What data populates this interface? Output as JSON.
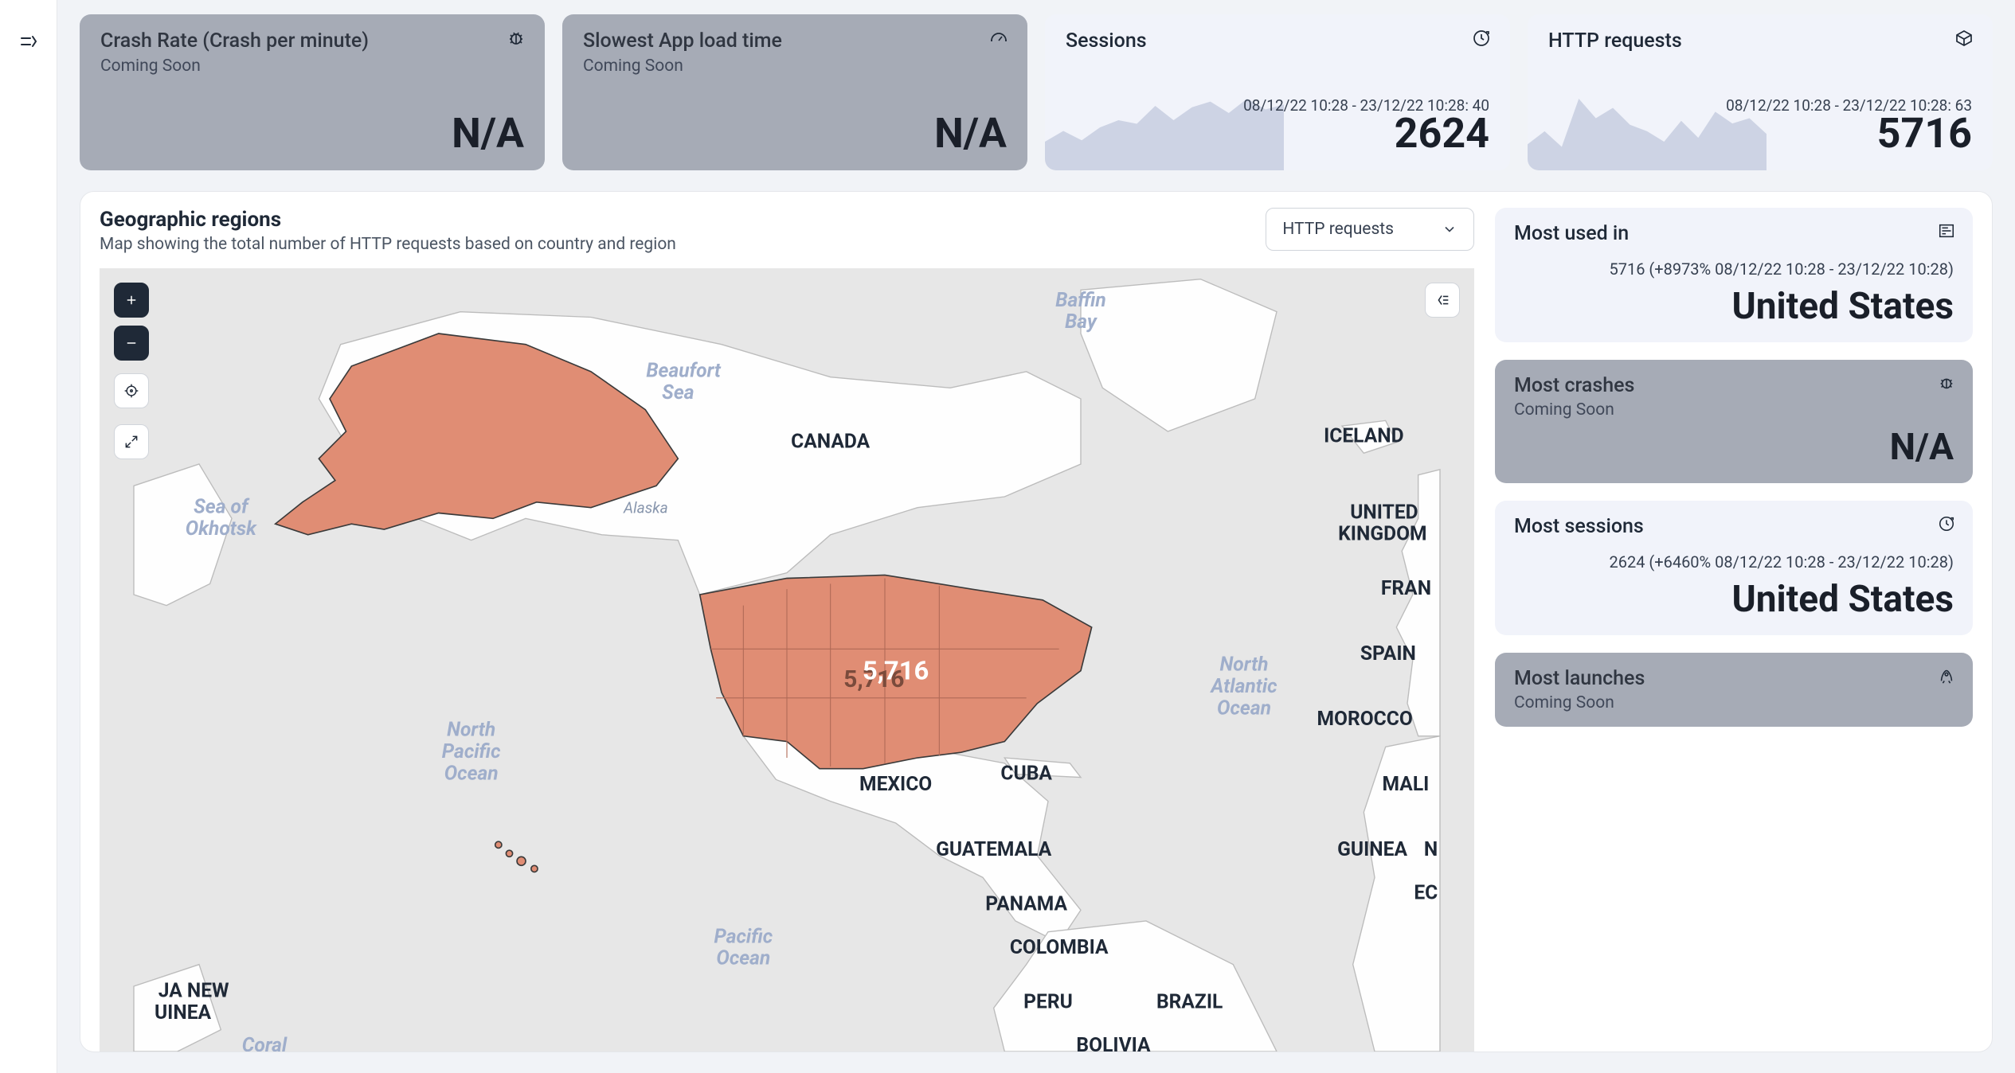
{
  "colors": {
    "page_bg": "#f1f3f7",
    "card_disabled_bg": "#a6abb6",
    "card_active_bg": "#f1f3fa",
    "spark_fill": "#cdd3e4",
    "map_water": "#e7e7e7",
    "map_land": "#fefefe",
    "map_highlight": "#e08d74",
    "map_border": "#8d8d8d"
  },
  "cards": {
    "crash_rate": {
      "title": "Crash Rate (Crash per minute)",
      "sub": "Coming Soon",
      "value": "N/A"
    },
    "slowest": {
      "title": "Slowest App load time",
      "sub": "Coming Soon",
      "value": "N/A"
    },
    "sessions": {
      "title": "Sessions",
      "range": "08/12/22 10:28 - 23/12/22 10:28: 40",
      "value": "2624"
    },
    "http": {
      "title": "HTTP requests",
      "range": "08/12/22 10:28 - 23/12/22 10:28: 63",
      "value": "5716"
    }
  },
  "sparklines": {
    "sessions": [
      40,
      55,
      42,
      60,
      70,
      65,
      90,
      70,
      88,
      96,
      80,
      100,
      85,
      92
    ],
    "http": [
      20,
      30,
      18,
      55,
      40,
      48,
      35,
      30,
      22,
      38,
      25,
      45,
      36,
      40,
      28
    ]
  },
  "geo": {
    "title": "Geographic regions",
    "sub": "Map showing the total number of HTTP requests based on country and region",
    "select_value": "HTTP requests",
    "highlight_value": "5,716",
    "labels": {
      "countries": [
        "CANADA",
        "ICELAND",
        "UNITED KINGDOM",
        "FRANCE",
        "SPAIN",
        "MOROCCO",
        "MALI",
        "GUINEA",
        "MEXICO",
        "CUBA",
        "GUATEMALA",
        "PANAMA",
        "COLOMBIA",
        "PERU",
        "BRAZIL",
        "BOLIVIA",
        "JA NEW",
        "UINEA",
        "N",
        "EC"
      ],
      "water": [
        "Baffin Bay",
        "Beaufort Sea",
        "Sea of Okhotsk",
        "North Pacific Ocean",
        "Pacific Ocean",
        "North Atlantic Ocean",
        "Coral"
      ]
    }
  },
  "side": {
    "most_used": {
      "title": "Most used in",
      "range": "5716 (+8973% 08/12/22 10:28 - 23/12/22 10:28)",
      "value": "United States"
    },
    "most_crashes": {
      "title": "Most crashes",
      "sub": "Coming Soon",
      "value": "N/A"
    },
    "most_sessions": {
      "title": "Most sessions",
      "range": "2624 (+6460% 08/12/22 10:28 - 23/12/22 10:28)",
      "value": "United States"
    },
    "most_launches": {
      "title": "Most launches",
      "sub": "Coming Soon"
    }
  }
}
